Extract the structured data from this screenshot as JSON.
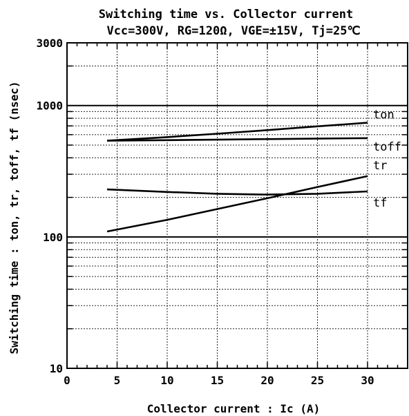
{
  "chart_data": {
    "type": "line",
    "title": "Switching time vs. Collector current",
    "subtitle": "Vcc=300V, RG=120Ω, VGE=±15V, Tj=25℃",
    "xlabel": "Collector current : Ic (A)",
    "ylabel": "Switching time : ton, tr, toff, tf (nsec)",
    "xlim": [
      0,
      34
    ],
    "ylim": [
      10,
      3000
    ],
    "yscale": "log",
    "grid": true,
    "x_ticks": [
      "0",
      "5",
      "10",
      "15",
      "20",
      "25",
      "30"
    ],
    "y_ticks": [
      "10",
      "100",
      "1000",
      "3000"
    ],
    "series": [
      {
        "name": "ton",
        "x": [
          4,
          10,
          15,
          20,
          25,
          30
        ],
        "values": [
          540,
          575,
          610,
          650,
          695,
          740
        ]
      },
      {
        "name": "toff",
        "x": [
          4,
          10,
          15,
          20,
          25,
          30
        ],
        "values": [
          540,
          545,
          550,
          555,
          560,
          565
        ]
      },
      {
        "name": "tr",
        "x": [
          4,
          10,
          15,
          20,
          25,
          30
        ],
        "values": [
          110,
          135,
          163,
          197,
          240,
          290
        ]
      },
      {
        "name": "tf",
        "x": [
          4,
          10,
          15,
          20,
          25,
          30
        ],
        "values": [
          230,
          220,
          213,
          210,
          213,
          222
        ]
      }
    ]
  }
}
